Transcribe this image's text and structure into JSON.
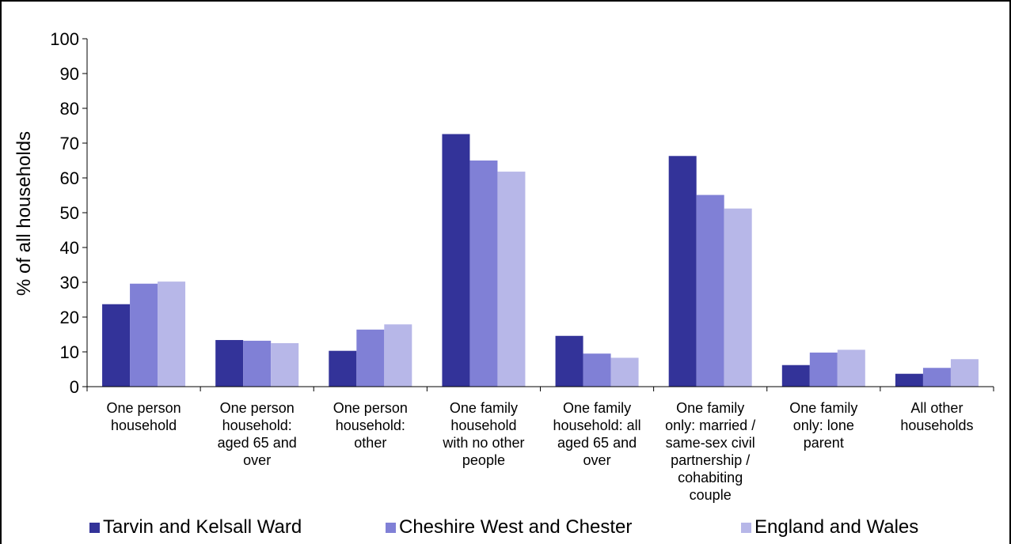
{
  "chart_data": {
    "type": "bar",
    "title": "",
    "xlabel": "",
    "ylabel": "% of all households",
    "ylim": [
      0,
      100
    ],
    "yticks": [
      0,
      10,
      20,
      30,
      40,
      50,
      60,
      70,
      80,
      90,
      100
    ],
    "grid": false,
    "legend_position": "bottom",
    "categories": [
      [
        "One person",
        "household"
      ],
      [
        "One person",
        "household:",
        "aged 65 and",
        "over"
      ],
      [
        "One person",
        "household:",
        "other"
      ],
      [
        "One family",
        "household",
        "with no other",
        "people"
      ],
      [
        "One family",
        "household: all",
        "aged 65 and",
        "over"
      ],
      [
        "One family",
        "only: married /",
        "same-sex civil",
        "partnership /",
        "cohabiting",
        "couple"
      ],
      [
        "One family",
        "only: lone",
        "parent"
      ],
      [
        "All other",
        "households"
      ]
    ],
    "series": [
      {
        "name": "Tarvin and Kelsall Ward",
        "color": "#333399",
        "values": [
          23.7,
          13.4,
          10.3,
          72.6,
          14.6,
          66.3,
          6.2,
          3.7
        ]
      },
      {
        "name": "Cheshire West and Chester",
        "color": "#8080d6",
        "values": [
          29.6,
          13.2,
          16.4,
          65.0,
          9.5,
          55.1,
          9.8,
          5.4
        ]
      },
      {
        "name": "England and Wales",
        "color": "#b7b7e8",
        "values": [
          30.2,
          12.5,
          17.9,
          61.8,
          8.3,
          51.2,
          10.6,
          7.9
        ]
      }
    ]
  }
}
